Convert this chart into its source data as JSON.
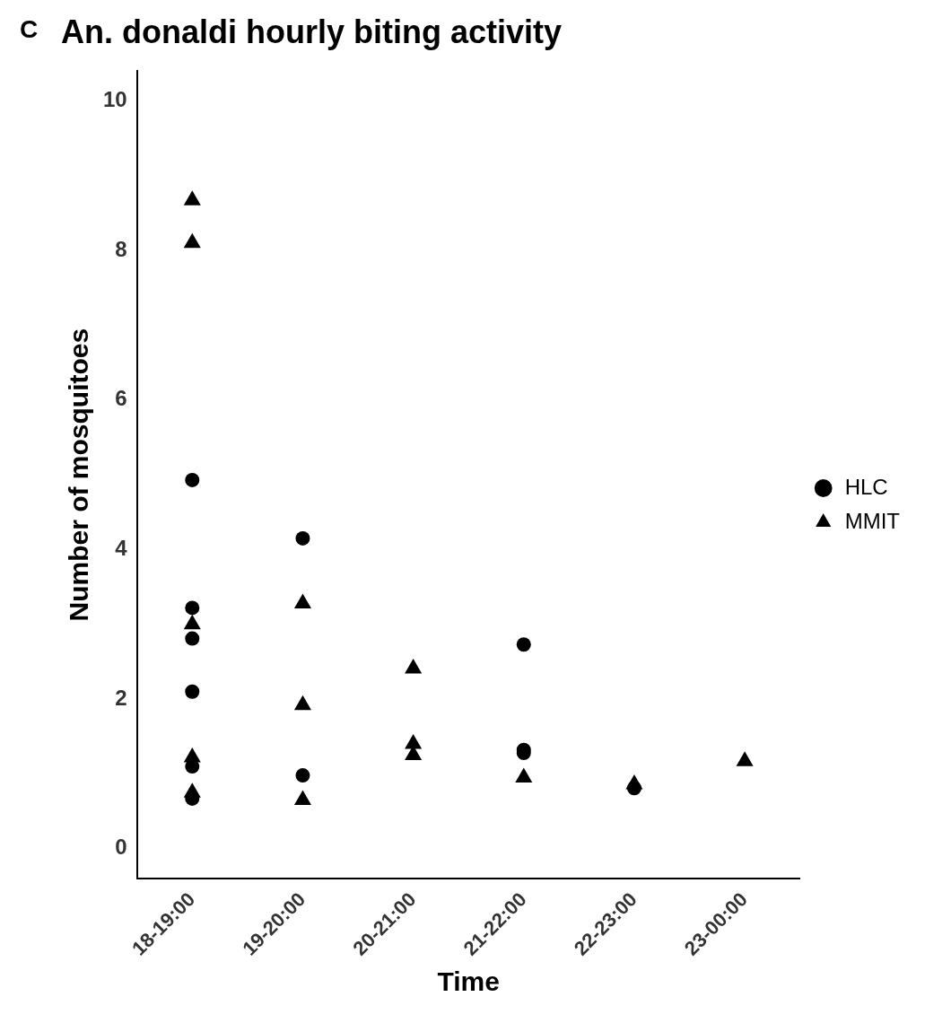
{
  "chart_data": {
    "type": "scatter",
    "title": "An. donaldi hourly biting activity",
    "xlabel": "Time",
    "ylabel": "Number of mosquitoes",
    "annotations": [
      "C"
    ],
    "categories": [
      "18-19:00",
      "19-20:00",
      "20-21:00",
      "21-22:00",
      "22-23:00",
      "23-00:00"
    ],
    "series": [
      {
        "name": "HLC",
        "color": "#000000",
        "marker": "circle",
        "x": [
          "18-19:00",
          "18-19:00",
          "18-19:00",
          "18-19:00",
          "18-19:00",
          "18-19:00",
          "19-20:00",
          "19-20:00",
          "21-22:00",
          "21-22:00",
          "21-22:00",
          "22-23:00"
        ],
        "values": [
          4.93,
          3.22,
          2.81,
          2.1,
          1.1,
          0.67,
          4.15,
          0.98,
          2.73,
          1.28,
          1.32,
          0.81
        ]
      },
      {
        "name": "MMIT",
        "color": "#000000",
        "marker": "triangle",
        "x": [
          "18-19:00",
          "18-19:00",
          "18-19:00",
          "18-19:00",
          "18-19:00",
          "19-20:00",
          "19-20:00",
          "19-20:00",
          "20-21:00",
          "20-21:00",
          "20-21:00",
          "21-22:00",
          "22-23:00",
          "23-00:00"
        ],
        "values": [
          8.67,
          8.1,
          3.0,
          1.22,
          0.75,
          3.28,
          1.92,
          0.65,
          2.41,
          1.4,
          1.25,
          0.95,
          0.86,
          1.17
        ]
      }
    ],
    "ylim": [
      -0.4,
      10.4
    ],
    "yticks": [
      0,
      2,
      4,
      6,
      8,
      10
    ],
    "grid": false,
    "legend": "right"
  }
}
